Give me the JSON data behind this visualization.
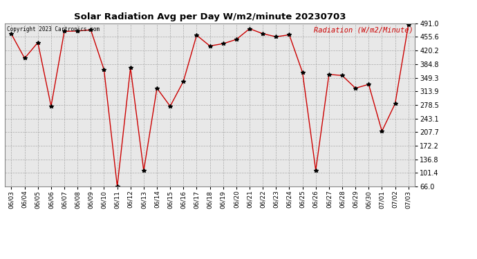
{
  "title": "Solar Radiation Avg per Day W/m2/minute 20230703",
  "copyright": "Copyright 2023 Cartronics.com",
  "legend_label": "Radiation (W/m2/Minute)",
  "dates": [
    "06/03",
    "06/04",
    "06/05",
    "06/06",
    "06/07",
    "06/08",
    "06/09",
    "06/10",
    "06/11",
    "06/12",
    "06/13",
    "06/14",
    "06/15",
    "06/16",
    "06/17",
    "06/18",
    "06/19",
    "06/20",
    "06/21",
    "06/22",
    "06/23",
    "06/24",
    "06/25",
    "06/26",
    "06/27",
    "06/28",
    "06/29",
    "06/30",
    "07/01",
    "07/02",
    "07/03"
  ],
  "values": [
    463,
    400,
    441,
    275,
    470,
    471,
    474,
    370,
    66,
    375,
    107,
    322,
    275,
    340,
    460,
    432,
    438,
    449,
    477,
    464,
    456,
    461,
    363,
    108,
    358,
    355,
    322,
    332,
    210,
    282,
    487
  ],
  "line_color": "#cc0000",
  "marker_color": "#000000",
  "bg_color": "#ffffff",
  "plot_bg_color": "#e8e8e8",
  "grid_color": "#aaaaaa",
  "title_color": "#000000",
  "legend_color": "#cc0000",
  "copyright_color": "#000000",
  "ylim_min": 66.0,
  "ylim_max": 491.0,
  "yticks": [
    66.0,
    101.4,
    136.8,
    172.2,
    207.7,
    243.1,
    278.5,
    313.9,
    349.3,
    384.8,
    420.2,
    455.6,
    491.0
  ]
}
